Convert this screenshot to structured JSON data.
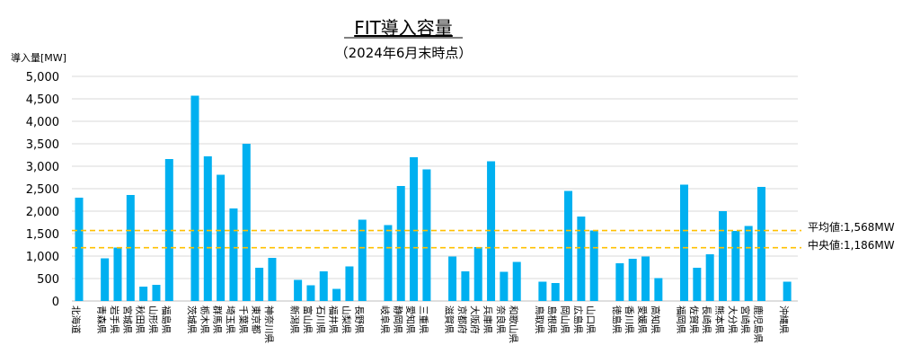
{
  "chart_data": {
    "type": "bar",
    "title": "FIT導入容量",
    "subtitle": "（2024年6月末時点）",
    "ylabel": "導入量[MW]",
    "ylim": [
      0,
      5000
    ],
    "yticks": [
      "0",
      "500",
      "1,000",
      "1,500",
      "2,000",
      "2,500",
      "3,000",
      "3,500",
      "4,000",
      "4,500",
      "5,000"
    ],
    "grid": "horizontal",
    "bar_color": "#00B0F0",
    "reference_line_color": "#FFC000",
    "groups": [
      [
        {
          "name": "北海道",
          "value": 2300
        }
      ],
      [
        {
          "name": "青森県",
          "value": 950
        },
        {
          "name": "岩手県",
          "value": 1190
        },
        {
          "name": "宮城県",
          "value": 2360
        },
        {
          "name": "秋田県",
          "value": 320
        },
        {
          "name": "山形県",
          "value": 360
        },
        {
          "name": "福島県",
          "value": 3160
        }
      ],
      [
        {
          "name": "茨城県",
          "value": 4570
        },
        {
          "name": "栃木県",
          "value": 3220
        },
        {
          "name": "群馬県",
          "value": 2810
        },
        {
          "name": "埼玉県",
          "value": 2060
        },
        {
          "name": "千葉県",
          "value": 3500
        },
        {
          "name": "東京都",
          "value": 740
        },
        {
          "name": "神奈川県",
          "value": 960
        }
      ],
      [
        {
          "name": "新潟県",
          "value": 470
        },
        {
          "name": "富山県",
          "value": 350
        },
        {
          "name": "石川県",
          "value": 660
        },
        {
          "name": "福井県",
          "value": 270
        },
        {
          "name": "山梨県",
          "value": 770
        },
        {
          "name": "長野県",
          "value": 1810
        }
      ],
      [
        {
          "name": "岐阜県",
          "value": 1690
        },
        {
          "name": "静岡県",
          "value": 2560
        },
        {
          "name": "愛知県",
          "value": 3200
        },
        {
          "name": "三重県",
          "value": 2930
        }
      ],
      [
        {
          "name": "滋賀県",
          "value": 990
        },
        {
          "name": "京都府",
          "value": 660
        },
        {
          "name": "大阪府",
          "value": 1200
        },
        {
          "name": "兵庫県",
          "value": 3110
        },
        {
          "name": "奈良県",
          "value": 650
        },
        {
          "name": "和歌山県",
          "value": 870
        }
      ],
      [
        {
          "name": "鳥取県",
          "value": 430
        },
        {
          "name": "島根県",
          "value": 400
        },
        {
          "name": "岡山県",
          "value": 2450
        },
        {
          "name": "広島県",
          "value": 1880
        },
        {
          "name": "山口県",
          "value": 1570
        }
      ],
      [
        {
          "name": "徳島県",
          "value": 840
        },
        {
          "name": "香川県",
          "value": 940
        },
        {
          "name": "愛媛県",
          "value": 990
        },
        {
          "name": "高知県",
          "value": 510
        }
      ],
      [
        {
          "name": "福岡県",
          "value": 2590
        },
        {
          "name": "佐賀県",
          "value": 740
        },
        {
          "name": "長崎県",
          "value": 1040
        },
        {
          "name": "熊本県",
          "value": 2000
        },
        {
          "name": "大分県",
          "value": 1560
        },
        {
          "name": "宮崎県",
          "value": 1670
        },
        {
          "name": "鹿児島県",
          "value": 2540
        }
      ],
      [
        {
          "name": "沖縄県",
          "value": 430
        }
      ]
    ],
    "reference_lines": [
      {
        "label": "平均値:1,568MW",
        "value": 1568
      },
      {
        "label": "中央値:1,186MW",
        "value": 1186
      }
    ]
  }
}
